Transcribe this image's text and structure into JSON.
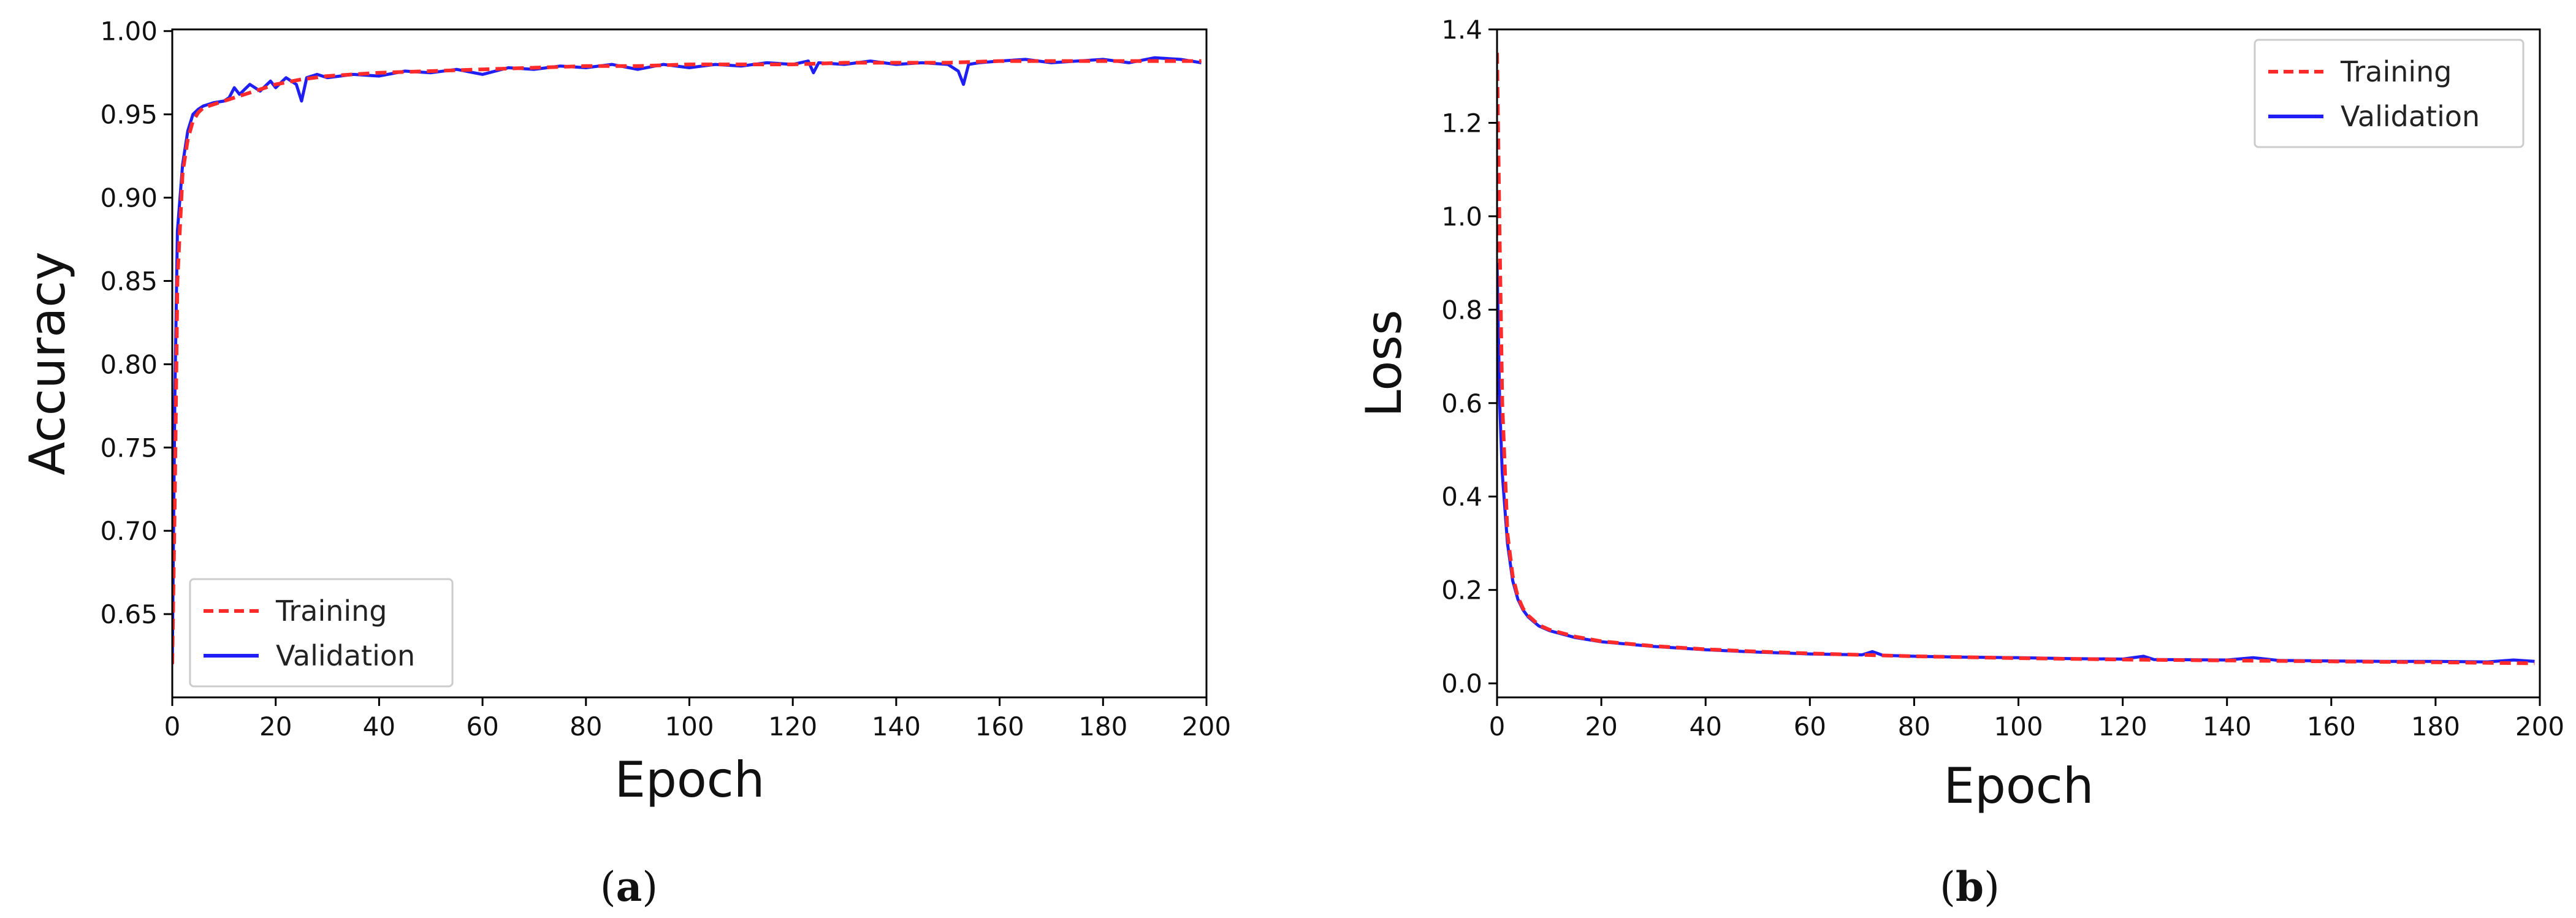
{
  "colors": {
    "training": "#ff2a2a",
    "validation": "#1f1ff5",
    "axis": "#000000",
    "legend_border": "#cccccc"
  },
  "chart_data": [
    {
      "type": "line",
      "panel": "a",
      "caption_open": "(",
      "caption_letter": "a",
      "caption_close": ")",
      "xlabel": "Epoch",
      "ylabel": "Accuracy",
      "xlim": [
        0,
        200
      ],
      "ylim": [
        0.6,
        1.001
      ],
      "xticks": [
        0,
        20,
        40,
        60,
        80,
        100,
        120,
        140,
        160,
        180,
        200
      ],
      "xtick_labels": [
        "0",
        "20",
        "40",
        "60",
        "80",
        "100",
        "120",
        "140",
        "160",
        "180",
        "200"
      ],
      "yticks": [
        0.65,
        0.7,
        0.75,
        0.8,
        0.85,
        0.9,
        0.95,
        1.0
      ],
      "ytick_labels": [
        "0.65",
        "0.70",
        "0.75",
        "0.80",
        "0.85",
        "0.90",
        "0.95",
        "1.00"
      ],
      "grid": false,
      "legend_position": "lower-left",
      "series": [
        {
          "name": "Training",
          "style": "dashed",
          "x": [
            0,
            0.5,
            1,
            2,
            3,
            4,
            5,
            6,
            8,
            10,
            12,
            15,
            18,
            20,
            25,
            30,
            40,
            50,
            60,
            70,
            80,
            90,
            100,
            110,
            120,
            130,
            140,
            150,
            160,
            170,
            180,
            190,
            199
          ],
          "y": [
            0.62,
            0.72,
            0.85,
            0.915,
            0.935,
            0.946,
            0.951,
            0.954,
            0.956,
            0.958,
            0.96,
            0.963,
            0.966,
            0.968,
            0.971,
            0.973,
            0.975,
            0.976,
            0.977,
            0.978,
            0.979,
            0.979,
            0.98,
            0.98,
            0.98,
            0.981,
            0.981,
            0.981,
            0.982,
            0.982,
            0.982,
            0.982,
            0.982
          ]
        },
        {
          "name": "Validation",
          "style": "solid",
          "x": [
            0,
            0.5,
            1,
            2,
            3,
            4,
            5,
            6,
            8,
            10,
            11,
            12,
            13,
            15,
            17,
            19,
            20,
            22,
            24,
            25,
            26,
            28,
            30,
            35,
            40,
            45,
            50,
            55,
            60,
            65,
            70,
            75,
            80,
            85,
            90,
            95,
            100,
            105,
            110,
            115,
            120,
            123,
            124,
            125,
            130,
            135,
            140,
            145,
            150,
            152,
            153,
            154,
            156,
            160,
            165,
            170,
            175,
            180,
            185,
            190,
            195,
            199
          ],
          "y": [
            0.62,
            0.78,
            0.88,
            0.92,
            0.94,
            0.95,
            0.953,
            0.955,
            0.957,
            0.958,
            0.96,
            0.966,
            0.962,
            0.968,
            0.964,
            0.97,
            0.966,
            0.972,
            0.968,
            0.958,
            0.972,
            0.974,
            0.972,
            0.974,
            0.973,
            0.976,
            0.975,
            0.977,
            0.974,
            0.978,
            0.977,
            0.979,
            0.978,
            0.98,
            0.977,
            0.98,
            0.978,
            0.98,
            0.979,
            0.981,
            0.98,
            0.982,
            0.975,
            0.981,
            0.98,
            0.982,
            0.98,
            0.981,
            0.98,
            0.976,
            0.968,
            0.98,
            0.981,
            0.982,
            0.983,
            0.981,
            0.982,
            0.983,
            0.981,
            0.984,
            0.983,
            0.981
          ]
        }
      ]
    },
    {
      "type": "line",
      "panel": "b",
      "caption_open": "(",
      "caption_letter": "b",
      "caption_close": ")",
      "xlabel": "Epoch",
      "ylabel": "Loss",
      "xlim": [
        0,
        200
      ],
      "ylim": [
        -0.03,
        1.4
      ],
      "xticks": [
        0,
        20,
        40,
        60,
        80,
        100,
        120,
        140,
        160,
        180,
        200
      ],
      "xtick_labels": [
        "0",
        "20",
        "40",
        "60",
        "80",
        "100",
        "120",
        "140",
        "160",
        "180",
        "200"
      ],
      "yticks": [
        0.0,
        0.2,
        0.4,
        0.6,
        0.8,
        1.0,
        1.2,
        1.4
      ],
      "ytick_labels": [
        "0.0",
        "0.2",
        "0.4",
        "0.6",
        "0.8",
        "1.0",
        "1.2",
        "1.4"
      ],
      "grid": false,
      "legend_position": "top-right",
      "series": [
        {
          "name": "Training",
          "style": "dashed",
          "x": [
            0,
            0.5,
            1,
            2,
            3,
            4,
            5,
            6,
            8,
            10,
            15,
            20,
            30,
            40,
            50,
            60,
            70,
            80,
            90,
            100,
            120,
            140,
            160,
            180,
            199
          ],
          "y": [
            1.35,
            0.95,
            0.6,
            0.32,
            0.23,
            0.185,
            0.16,
            0.145,
            0.125,
            0.115,
            0.1,
            0.09,
            0.08,
            0.073,
            0.068,
            0.064,
            0.061,
            0.058,
            0.056,
            0.054,
            0.051,
            0.049,
            0.047,
            0.045,
            0.043
          ]
        },
        {
          "name": "Validation",
          "style": "solid",
          "x": [
            0,
            0.5,
            1,
            2,
            3,
            4,
            5,
            6,
            8,
            10,
            15,
            20,
            30,
            40,
            50,
            60,
            70,
            72,
            74,
            80,
            90,
            100,
            110,
            120,
            124,
            126,
            140,
            145,
            150,
            160,
            170,
            180,
            190,
            195,
            199
          ],
          "y": [
            0.9,
            0.6,
            0.45,
            0.3,
            0.22,
            0.18,
            0.157,
            0.142,
            0.123,
            0.113,
            0.098,
            0.089,
            0.079,
            0.072,
            0.067,
            0.063,
            0.061,
            0.068,
            0.06,
            0.058,
            0.056,
            0.055,
            0.053,
            0.052,
            0.058,
            0.051,
            0.05,
            0.055,
            0.049,
            0.048,
            0.047,
            0.047,
            0.046,
            0.05,
            0.047
          ]
        }
      ]
    }
  ]
}
